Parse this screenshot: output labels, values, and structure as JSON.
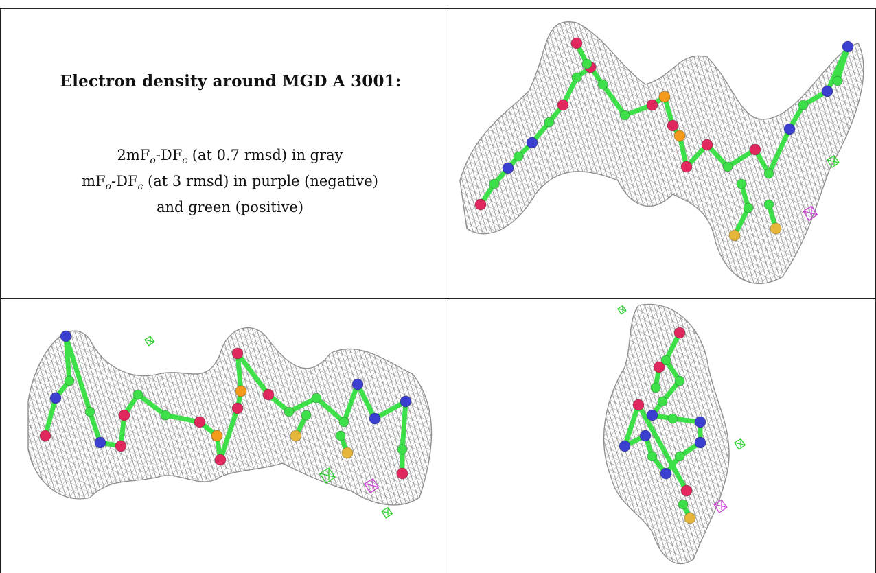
{
  "title": "Electron density around MGD A 3001:",
  "legend": {
    "line1": {
      "a": "2mF",
      "o": "o",
      "b": "-DF",
      "c": "c",
      "rest": " (at 0.7 rmsd) in gray"
    },
    "line2": {
      "a": "mF",
      "o": "o",
      "b": "-DF",
      "c": "c",
      "rest": " (at 3 rmsd) in purple (negative)"
    },
    "line3": "and green (positive)"
  },
  "panels": [
    {
      "name": "view-top-right"
    },
    {
      "name": "view-bottom-left"
    },
    {
      "name": "view-bottom-right"
    }
  ],
  "colors": {
    "mesh": "#8a8a8a",
    "carbon": "#3ee04a",
    "nitrogen": "#3b3fd0",
    "oxygen": "#e0285f",
    "phosphorus": "#f39a1d",
    "sulfur": "#e6b63a",
    "positive_density": "#2fd02f",
    "negative_density": "#cf3fd8"
  }
}
